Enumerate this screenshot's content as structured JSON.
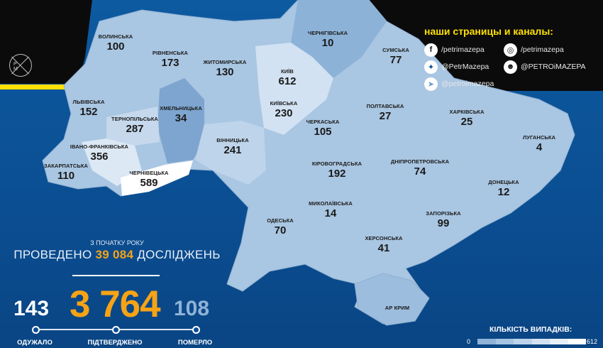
{
  "map": {
    "regions": [
      {
        "name": "ВОЛИНСЬКА",
        "value": "100"
      },
      {
        "name": "РІВНЕНСЬКА",
        "value": "173"
      },
      {
        "name": "ЖИТОМИРСЬКА",
        "value": "130"
      },
      {
        "name": "КИЇВ",
        "value": "612"
      },
      {
        "name": "ЧЕРНІГІВСЬКА",
        "value": "10"
      },
      {
        "name": "СУМСЬКА",
        "value": "77"
      },
      {
        "name": "ЛЬВІВСЬКА",
        "value": "152"
      },
      {
        "name": "ТЕРНОПІЛЬСЬКА",
        "value": "287"
      },
      {
        "name": "ХМЕЛЬНИЦЬКА",
        "value": "34"
      },
      {
        "name": "КИЇВСЬКА",
        "value": "230"
      },
      {
        "name": "ПОЛТАВСЬКА",
        "value": "27"
      },
      {
        "name": "ХАРКІВСЬКА",
        "value": "25"
      },
      {
        "name": "ЛУГАНСЬКА",
        "value": "4"
      },
      {
        "name": "ЧЕРКАСЬКА",
        "value": "105"
      },
      {
        "name": "ВІННИЦЬКА",
        "value": "241"
      },
      {
        "name": "ІВАНО-ФРАНКІВСЬКА",
        "value": "356"
      },
      {
        "name": "ЗАКАРПАТСЬКА",
        "value": "110"
      },
      {
        "name": "ЧЕРНІВЕЦЬКА",
        "value": "589"
      },
      {
        "name": "КІРОВОГРАДСЬКА",
        "value": "192"
      },
      {
        "name": "ДНІПРОПЕТРОВСЬКА",
        "value": "74"
      },
      {
        "name": "ДОНЕЦЬКА",
        "value": "12"
      },
      {
        "name": "МИКОЛАЇВСЬКА",
        "value": "14"
      },
      {
        "name": "ОДЕСЬКА",
        "value": "70"
      },
      {
        "name": "ЗАПОРІЗЬКА",
        "value": "99"
      },
      {
        "name": "ХЕРСОНСЬКА",
        "value": "41"
      },
      {
        "name": "АР КРИМ",
        "value": ""
      }
    ]
  },
  "social": {
    "title": "наши страницы и каналы:",
    "links": [
      {
        "icon": "facebook-icon",
        "label": "/petrimazepa"
      },
      {
        "icon": "instagram-icon",
        "label": "/petrimazepa"
      },
      {
        "icon": "twitter-icon",
        "label": "@PetrMazepa"
      },
      {
        "icon": "reddit-icon",
        "label": "@PETROiMAZEPA"
      },
      {
        "icon": "telegram-icon",
        "label": "@petroimazepa"
      }
    ]
  },
  "logo": {
    "letters": "P M"
  },
  "stats": {
    "since": "З ПОЧАТКУ РОКУ",
    "tests_prefix": "ПРОВЕДЕНО",
    "tests_value": "39 084",
    "tests_suffix": "ДОСЛІДЖЕНЬ",
    "recovered": "143",
    "confirmed": "3 764",
    "deaths": "108",
    "recovered_label": "ОДУЖАЛО",
    "confirmed_label": "ПІДТВЕРДЖЕНО",
    "deaths_label": "ПОМЕРЛО"
  },
  "legend": {
    "title": "КІЛЬКІСТЬ ВИПАДКІВ:",
    "min": "0",
    "max": "612",
    "scale_colors": [
      "#8fb3d6",
      "#a6c4e1",
      "#bdd3ea",
      "#d3e2f1",
      "#e8f0f8",
      "#ffffff"
    ]
  },
  "colors": {
    "accent": "#f6a316",
    "yellow": "#ffe000",
    "map_base": "#a9c6e2",
    "background": "#0b4e92"
  }
}
